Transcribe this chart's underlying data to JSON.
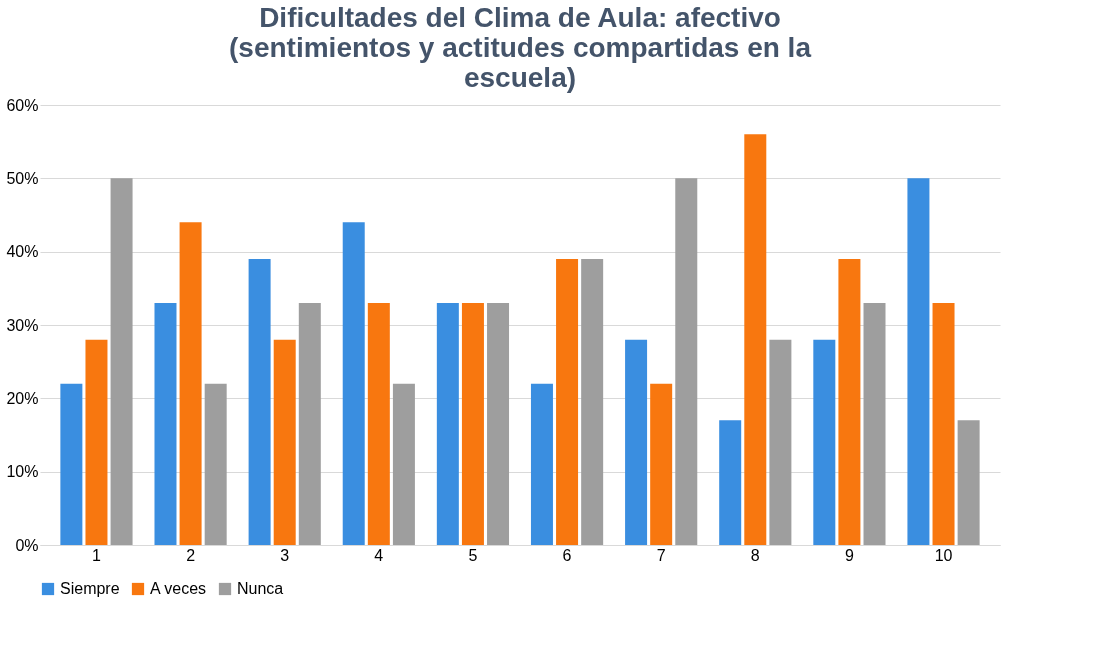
{
  "chart_data": {
    "type": "bar",
    "title": "Dificultades del Clima de Aula: afectivo (sentimientos y actitudes compartidas en la escuela)",
    "categories": [
      "1",
      "2",
      "3",
      "4",
      "5",
      "6",
      "7",
      "8",
      "9",
      "10"
    ],
    "series": [
      {
        "name": "Siempre",
        "color": "#3a8ee0",
        "values": [
          22,
          33,
          39,
          44,
          33,
          22,
          28,
          17,
          28,
          50
        ]
      },
      {
        "name": "A veces",
        "color": "#f8770f",
        "values": [
          28,
          44,
          28,
          33,
          33,
          39,
          22,
          56,
          39,
          33
        ]
      },
      {
        "name": "Nunca",
        "color": "#9e9e9e",
        "values": [
          50,
          22,
          33,
          22,
          33,
          39,
          50,
          28,
          33,
          17
        ]
      }
    ],
    "ylim": [
      0,
      60
    ],
    "yticks": [
      {
        "value": 0,
        "label": "0%"
      },
      {
        "value": 10,
        "label": "10%"
      },
      {
        "value": 20,
        "label": "20%"
      },
      {
        "value": 30,
        "label": "30%"
      },
      {
        "value": 40,
        "label": "40%"
      },
      {
        "value": 50,
        "label": "50%"
      },
      {
        "value": 60,
        "label": "60%"
      }
    ],
    "grid": "y",
    "legend": "bottom"
  }
}
